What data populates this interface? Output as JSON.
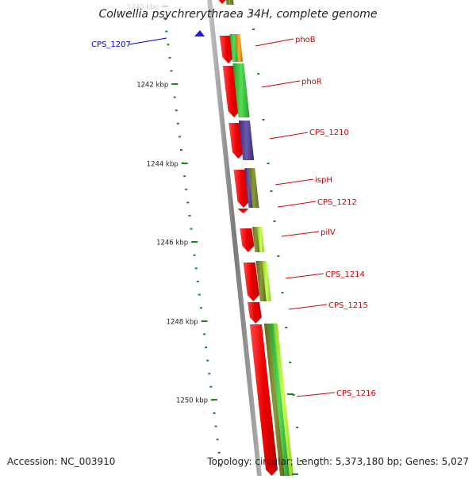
{
  "title": "Colwellia psychrerythraea 34H, complete genome",
  "accession": "Accession: NC_003910",
  "topology": "Topology: circular; Length: 5,373,180 bp; Genes: 5,027",
  "ruler_labels": [
    "1240 kbp",
    "1242 kbp",
    "1244 kbp",
    "1246 kbp",
    "1248 kbp",
    "1250 kbp"
  ],
  "features": [
    {
      "name": "CPS_1207",
      "color": "#0000cc"
    },
    {
      "name": "phoB",
      "color": "#cc0000"
    },
    {
      "name": "phoR",
      "color": "#cc0000"
    },
    {
      "name": "CPS_1210",
      "color": "#cc0000"
    },
    {
      "name": "ispH",
      "color": "#cc0000"
    },
    {
      "name": "CPS_1212",
      "color": "#cc0000"
    },
    {
      "name": "pilV",
      "color": "#cc0000"
    },
    {
      "name": "CPS_1214",
      "color": "#cc0000"
    },
    {
      "name": "CPS_1215",
      "color": "#cc0000"
    },
    {
      "name": "CPS_1216",
      "color": "#cc0000"
    }
  ],
  "colors": {
    "gene_forward": "#ee0000",
    "gene_marker": "#1a1aee",
    "backbone": "#8a8a8a",
    "ruler_dots": "#1a8a1a",
    "cog_green": "#4cc44c",
    "cog_olive": "#7a8a2a",
    "cog_orange": "#ee8a10",
    "cog_purple": "#5a4a9a",
    "cog_lime": "#bfff40"
  }
}
